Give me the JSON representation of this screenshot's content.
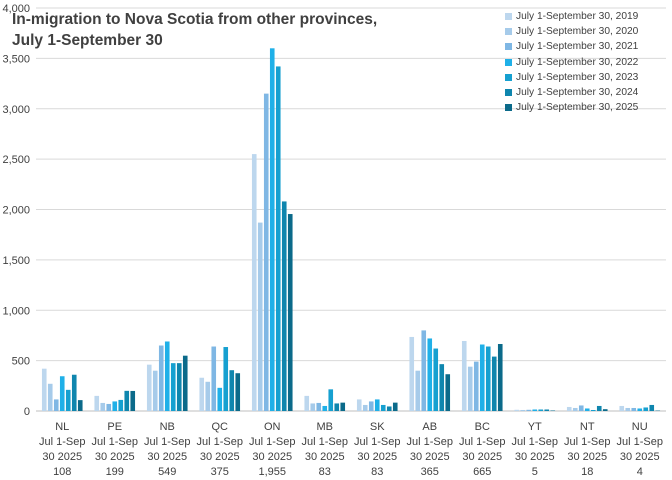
{
  "chart_data": {
    "type": "bar",
    "title_lines": [
      "In-migration to Nova Scotia from other provinces,",
      "July 1-September 30"
    ],
    "categories": [
      "NL",
      "PE",
      "NB",
      "QC",
      "ON",
      "MB",
      "SK",
      "AB",
      "BC",
      "YT",
      "NT",
      "NU"
    ],
    "category_sublabel_lines": [
      "Jul 1-Sep",
      "30 2025"
    ],
    "category_latest_values": [
      "108",
      "199",
      "549",
      "375",
      "1,955",
      "83",
      "83",
      "365",
      "665",
      "5",
      "18",
      "4"
    ],
    "ylim": [
      0,
      4000
    ],
    "yticks": [
      0,
      500,
      1000,
      1500,
      2000,
      2500,
      3000,
      3500,
      4000
    ],
    "ytick_labels": [
      "0",
      "500",
      "1,000",
      "1,500",
      "2,000",
      "2,500",
      "3,000",
      "3,500",
      "4,000"
    ],
    "grid": true,
    "legend_position": "top-right",
    "xlabel": "",
    "ylabel": "",
    "series": [
      {
        "name": "July 1-September 30, 2019",
        "color": "#BDD7EE",
        "values": [
          420,
          150,
          460,
          330,
          2550,
          150,
          115,
          735,
          695,
          12,
          40,
          50
        ]
      },
      {
        "name": "July 1-September 30, 2020",
        "color": "#A6CBEA",
        "values": [
          270,
          80,
          400,
          290,
          1870,
          75,
          60,
          400,
          440,
          10,
          30,
          30
        ]
      },
      {
        "name": "July 1-September 30, 2021",
        "color": "#7FB7E4",
        "values": [
          115,
          70,
          650,
          640,
          3150,
          80,
          95,
          800,
          490,
          12,
          55,
          30
        ]
      },
      {
        "name": "July 1-September 30, 2022",
        "color": "#1FB0E8",
        "values": [
          345,
          95,
          690,
          230,
          3600,
          50,
          115,
          720,
          660,
          15,
          25,
          25
        ]
      },
      {
        "name": "July 1-September 30, 2023",
        "color": "#16A0D0",
        "values": [
          210,
          110,
          475,
          635,
          3420,
          215,
          60,
          620,
          640,
          15,
          10,
          35
        ]
      },
      {
        "name": "July 1-September 30, 2024",
        "color": "#0F86AE",
        "values": [
          360,
          200,
          475,
          405,
          2080,
          75,
          45,
          465,
          540,
          15,
          50,
          60
        ]
      },
      {
        "name": "July 1-September 30, 2025",
        "color": "#0B6A8A",
        "values": [
          108,
          199,
          549,
          375,
          1955,
          83,
          83,
          365,
          665,
          5,
          18,
          4
        ]
      }
    ]
  }
}
